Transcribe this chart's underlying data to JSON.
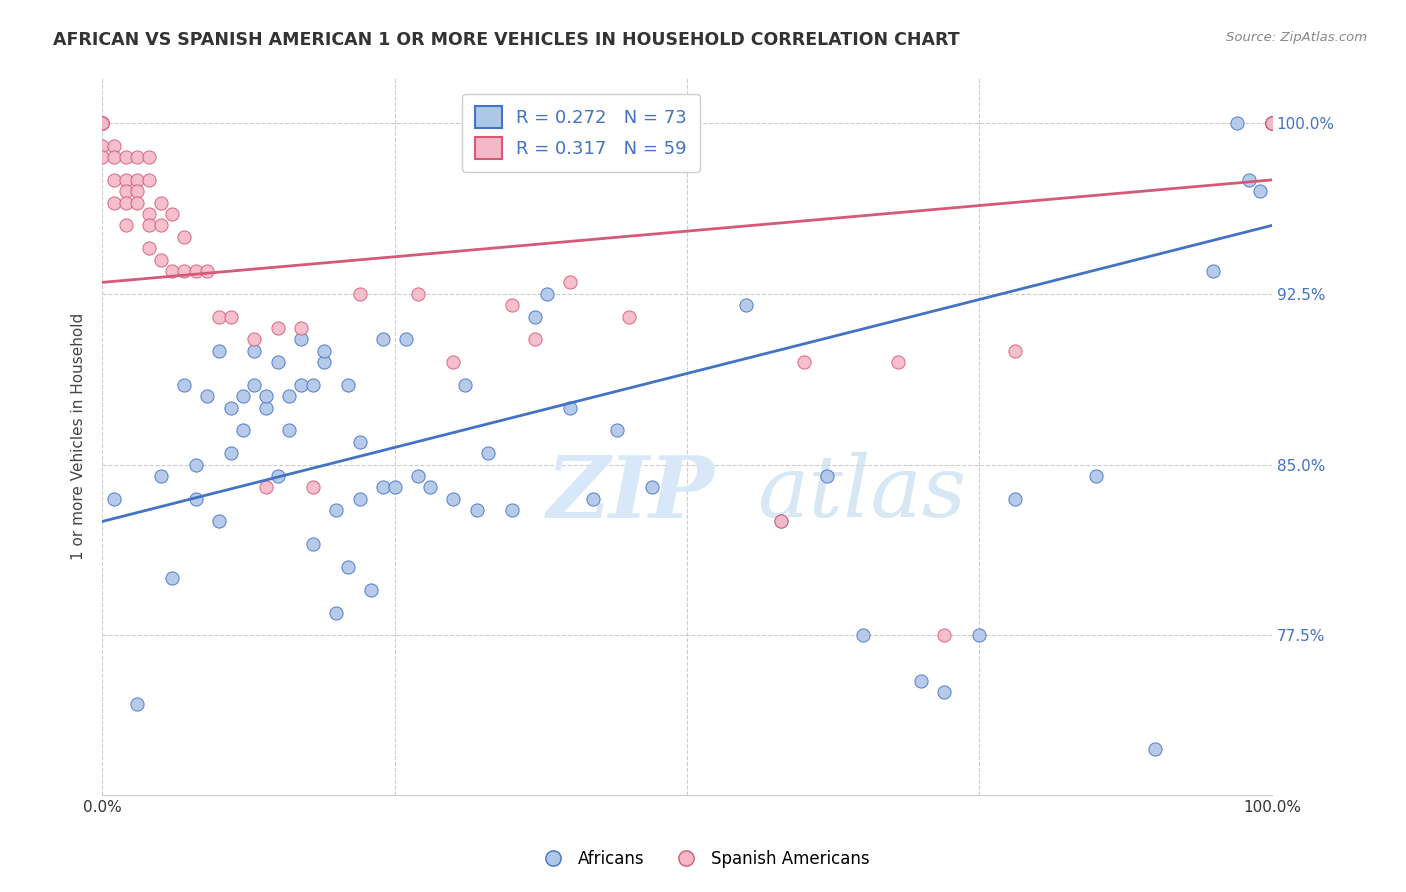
{
  "title": "AFRICAN VS SPANISH AMERICAN 1 OR MORE VEHICLES IN HOUSEHOLD CORRELATION CHART",
  "source": "Source: ZipAtlas.com",
  "ylabel": "1 or more Vehicles in Household",
  "xlim": [
    0,
    100
  ],
  "ylim": [
    70.5,
    102
  ],
  "yticks": [
    77.5,
    85.0,
    92.5,
    100.0
  ],
  "ytick_labels": [
    "77.5%",
    "85.0%",
    "92.5%",
    "100.0%"
  ],
  "legend_blue_r": "R = 0.272",
  "legend_blue_n": "N = 73",
  "legend_pink_r": "R = 0.317",
  "legend_pink_n": "N = 59",
  "blue_color": "#aec6e8",
  "blue_edge_color": "#4472c4",
  "pink_color": "#f4b8c8",
  "pink_edge_color": "#d45a78",
  "blue_scatter_x": [
    1,
    3,
    5,
    6,
    7,
    8,
    8,
    9,
    10,
    10,
    11,
    11,
    12,
    12,
    13,
    13,
    14,
    14,
    15,
    15,
    16,
    16,
    17,
    17,
    18,
    18,
    19,
    19,
    20,
    20,
    21,
    21,
    22,
    22,
    23,
    24,
    24,
    25,
    26,
    27,
    28,
    30,
    31,
    32,
    33,
    35,
    37,
    38,
    40,
    42,
    44,
    47,
    55,
    58,
    62,
    65,
    70,
    72,
    75,
    78,
    85,
    90,
    95,
    97,
    98,
    99,
    100,
    100,
    100,
    100,
    100,
    100,
    100
  ],
  "blue_scatter_y": [
    83.5,
    74.5,
    84.5,
    80.0,
    88.5,
    83.5,
    85.0,
    88.0,
    82.5,
    90.0,
    85.5,
    87.5,
    86.5,
    88.0,
    88.5,
    90.0,
    87.5,
    88.0,
    84.5,
    89.5,
    86.5,
    88.0,
    90.5,
    88.5,
    81.5,
    88.5,
    89.5,
    90.0,
    78.5,
    83.0,
    80.5,
    88.5,
    86.0,
    83.5,
    79.5,
    84.0,
    90.5,
    84.0,
    90.5,
    84.5,
    84.0,
    83.5,
    88.5,
    83.0,
    85.5,
    83.0,
    91.5,
    92.5,
    87.5,
    83.5,
    86.5,
    84.0,
    92.0,
    82.5,
    84.5,
    77.5,
    75.5,
    75.0,
    77.5,
    83.5,
    84.5,
    72.5,
    93.5,
    100.0,
    97.5,
    97.0,
    100.0,
    100.0,
    100.0,
    100.0,
    100.0,
    100.0,
    100.0
  ],
  "pink_scatter_x": [
    0,
    0,
    0,
    0,
    0,
    0,
    0,
    0,
    1,
    1,
    1,
    1,
    2,
    2,
    2,
    2,
    2,
    3,
    3,
    3,
    3,
    4,
    4,
    4,
    4,
    4,
    5,
    5,
    5,
    6,
    6,
    7,
    7,
    8,
    9,
    10,
    11,
    13,
    14,
    15,
    17,
    18,
    22,
    27,
    30,
    35,
    37,
    40,
    45,
    58,
    60,
    68,
    72,
    78,
    100,
    100,
    100,
    100,
    100
  ],
  "pink_scatter_y": [
    100.0,
    100.0,
    100.0,
    100.0,
    100.0,
    100.0,
    99.0,
    98.5,
    99.0,
    98.5,
    97.5,
    96.5,
    98.5,
    97.5,
    97.0,
    96.5,
    95.5,
    98.5,
    97.5,
    97.0,
    96.5,
    98.5,
    97.5,
    96.0,
    95.5,
    94.5,
    96.5,
    95.5,
    94.0,
    96.0,
    93.5,
    95.0,
    93.5,
    93.5,
    93.5,
    91.5,
    91.5,
    90.5,
    84.0,
    91.0,
    91.0,
    84.0,
    92.5,
    92.5,
    89.5,
    92.0,
    90.5,
    93.0,
    91.5,
    82.5,
    89.5,
    89.5,
    77.5,
    90.0,
    100.0,
    100.0,
    100.0,
    100.0,
    100.0
  ],
  "blue_trend_x": [
    0,
    100
  ],
  "blue_trend_y": [
    82.5,
    95.5
  ],
  "pink_trend_x": [
    0,
    100
  ],
  "pink_trend_y": [
    93.0,
    97.5
  ],
  "background_color": "#ffffff",
  "watermark_zip": "ZIP",
  "watermark_atlas": "atlas",
  "watermark_color": "#d8e8f8"
}
